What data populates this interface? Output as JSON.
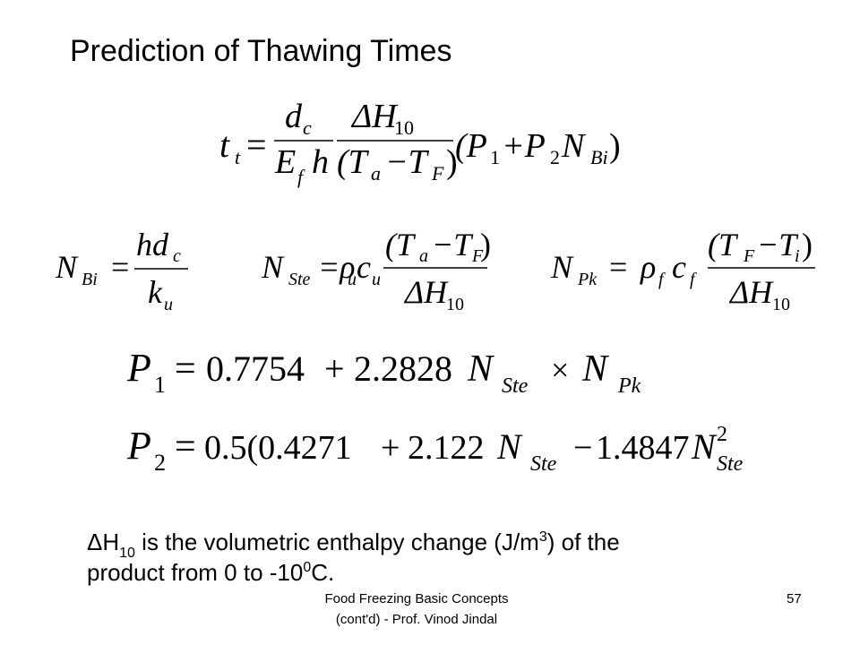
{
  "title": "Prediction of Thawing Times",
  "equations": {
    "thawing_time": [
      "t",
      "t",
      "=",
      "d",
      "c",
      "E",
      "f",
      "h",
      "ΔH",
      "10",
      "(T",
      "a",
      "−T",
      "F",
      ")",
      "(P",
      "1",
      "+P",
      "2",
      "N",
      "Bi",
      ")"
    ],
    "biot": [
      "N",
      "Bi",
      "=",
      "hd",
      "c",
      "k",
      "u"
    ],
    "stefan": [
      "N",
      "Ste",
      "=ρ",
      "u",
      "c",
      "u",
      "(T",
      "a",
      "−T",
      "F",
      ")",
      "ΔH",
      "10"
    ],
    "plank": [
      "N",
      "Pk",
      "=",
      "ρ",
      "f",
      "c",
      "f",
      "(T",
      "F",
      "−T",
      "i",
      ")",
      "ΔH",
      "10"
    ],
    "p1": [
      "P",
      "1",
      "=",
      "0.7754",
      "+",
      "2.2828",
      "N",
      "Ste",
      "×",
      "N",
      "Pk"
    ],
    "p2": [
      "P",
      "2",
      "=",
      "0.5(0.4271",
      "+",
      "2.122",
      "N",
      "Ste",
      "−",
      "1.4847",
      "N",
      "2",
      "Ste"
    ]
  },
  "note": {
    "line1": [
      "ΔH",
      "10",
      " is the volumetric enthalpy change (J/m",
      "3",
      ") of the"
    ],
    "line2": [
      "product from 0 to -10",
      "0",
      "C."
    ]
  },
  "footer": {
    "source": [
      "Food Freezing Basic Concepts",
      "(cont'd) - Prof. Vinod Jindal"
    ],
    "page": "57"
  }
}
